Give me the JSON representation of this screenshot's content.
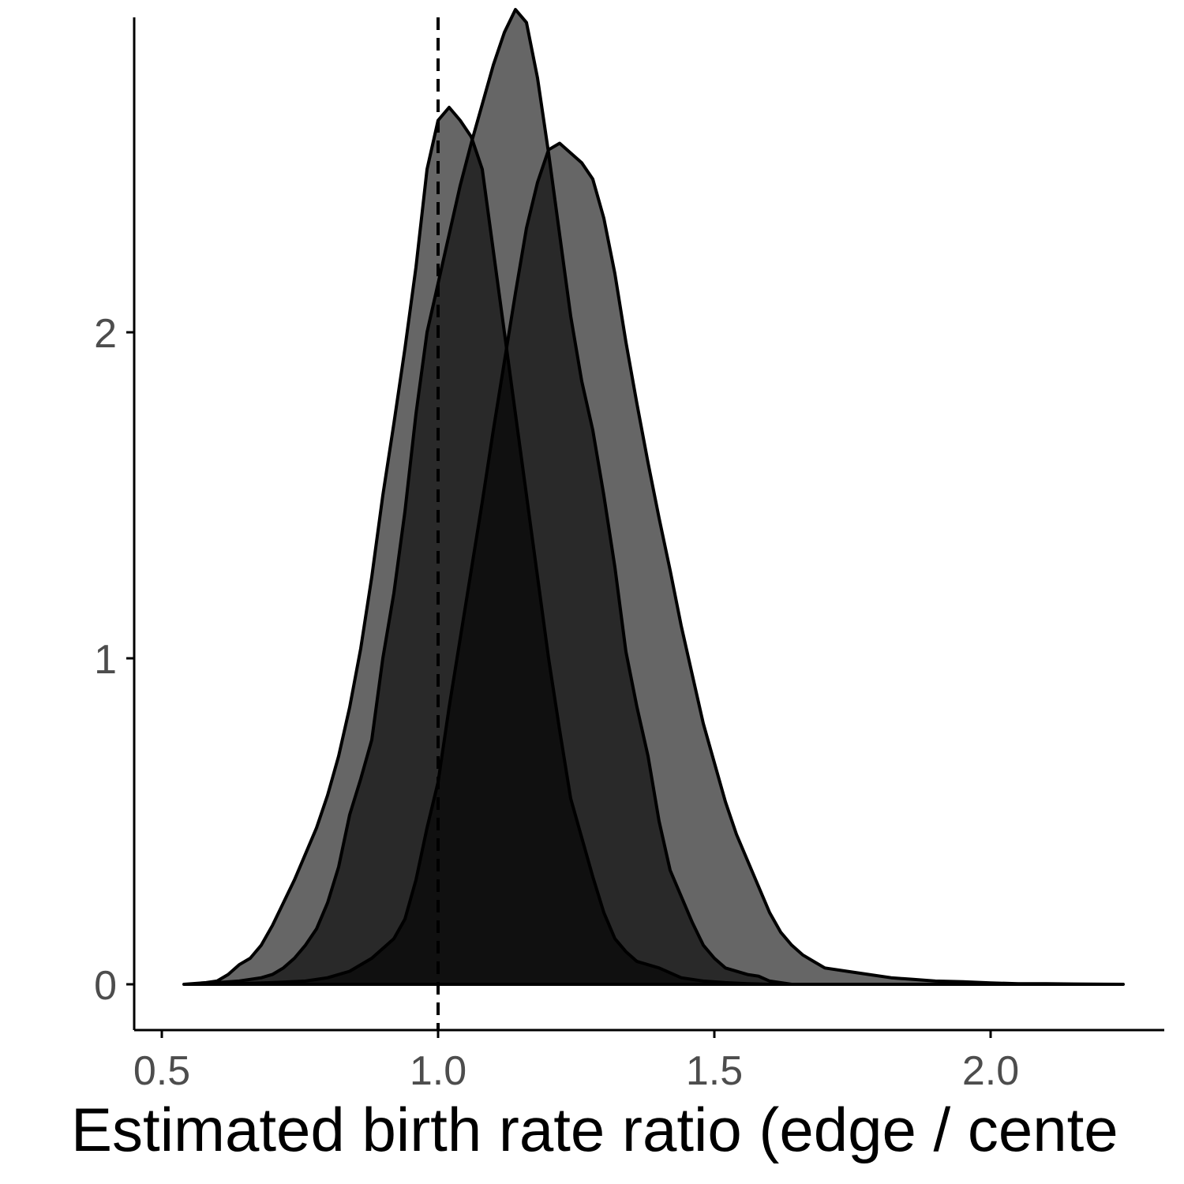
{
  "chart_data": {
    "type": "area",
    "xlabel": "Estimated birth rate ratio (edge / cente",
    "ylabel": "",
    "title": "",
    "xlim": [
      0.45,
      2.3
    ],
    "ylim": [
      -0.14,
      2.96
    ],
    "xticks": [
      {
        "value": 0.5,
        "label": "0.5"
      },
      {
        "value": 1.0,
        "label": "1.0"
      },
      {
        "value": 1.5,
        "label": "1.5"
      },
      {
        "value": 2.0,
        "label": "2.0"
      }
    ],
    "yticks": [
      {
        "value": 0,
        "label": "0"
      },
      {
        "value": 1,
        "label": "1"
      },
      {
        "value": 2,
        "label": "2"
      }
    ],
    "reference_line": {
      "x": 1.0,
      "style": "dashed",
      "color": "#000000"
    },
    "grid": false,
    "legend": "none",
    "fill_color": "#000000",
    "fill_opacity": 0.6,
    "outline_color": "#000000",
    "series": [
      {
        "points": [
          [
            0.54,
            0.0
          ],
          [
            0.58,
            0.005
          ],
          [
            0.6,
            0.01
          ],
          [
            0.62,
            0.03
          ],
          [
            0.64,
            0.06
          ],
          [
            0.66,
            0.08
          ],
          [
            0.68,
            0.12
          ],
          [
            0.7,
            0.18
          ],
          [
            0.72,
            0.25
          ],
          [
            0.74,
            0.32
          ],
          [
            0.76,
            0.4
          ],
          [
            0.78,
            0.48
          ],
          [
            0.8,
            0.58
          ],
          [
            0.82,
            0.7
          ],
          [
            0.84,
            0.85
          ],
          [
            0.86,
            1.03
          ],
          [
            0.88,
            1.25
          ],
          [
            0.9,
            1.5
          ],
          [
            0.92,
            1.72
          ],
          [
            0.94,
            1.95
          ],
          [
            0.96,
            2.2
          ],
          [
            0.98,
            2.5
          ],
          [
            1.0,
            2.65
          ],
          [
            1.02,
            2.69
          ],
          [
            1.04,
            2.65
          ],
          [
            1.06,
            2.6
          ],
          [
            1.08,
            2.5
          ],
          [
            1.1,
            2.25
          ],
          [
            1.12,
            2.0
          ],
          [
            1.14,
            1.75
          ],
          [
            1.16,
            1.5
          ],
          [
            1.18,
            1.25
          ],
          [
            1.2,
            1.0
          ],
          [
            1.22,
            0.78
          ],
          [
            1.24,
            0.57
          ],
          [
            1.26,
            0.45
          ],
          [
            1.28,
            0.33
          ],
          [
            1.3,
            0.22
          ],
          [
            1.32,
            0.14
          ],
          [
            1.34,
            0.1
          ],
          [
            1.36,
            0.07
          ],
          [
            1.4,
            0.05
          ],
          [
            1.44,
            0.02
          ],
          [
            1.48,
            0.01
          ],
          [
            1.52,
            0.005
          ],
          [
            1.56,
            0.002
          ],
          [
            1.6,
            0.0
          ]
        ]
      },
      {
        "points": [
          [
            0.56,
            0.0
          ],
          [
            0.6,
            0.005
          ],
          [
            0.64,
            0.01
          ],
          [
            0.68,
            0.02
          ],
          [
            0.7,
            0.03
          ],
          [
            0.72,
            0.05
          ],
          [
            0.74,
            0.08
          ],
          [
            0.76,
            0.12
          ],
          [
            0.78,
            0.17
          ],
          [
            0.8,
            0.25
          ],
          [
            0.82,
            0.36
          ],
          [
            0.84,
            0.52
          ],
          [
            0.86,
            0.63
          ],
          [
            0.88,
            0.75
          ],
          [
            0.9,
            1.0
          ],
          [
            0.92,
            1.2
          ],
          [
            0.94,
            1.45
          ],
          [
            0.96,
            1.75
          ],
          [
            0.98,
            2.0
          ],
          [
            1.0,
            2.15
          ],
          [
            1.02,
            2.3
          ],
          [
            1.04,
            2.45
          ],
          [
            1.06,
            2.58
          ],
          [
            1.08,
            2.7
          ],
          [
            1.1,
            2.82
          ],
          [
            1.12,
            2.92
          ],
          [
            1.14,
            2.99
          ],
          [
            1.16,
            2.95
          ],
          [
            1.18,
            2.78
          ],
          [
            1.2,
            2.55
          ],
          [
            1.22,
            2.3
          ],
          [
            1.24,
            2.05
          ],
          [
            1.26,
            1.85
          ],
          [
            1.28,
            1.7
          ],
          [
            1.3,
            1.5
          ],
          [
            1.32,
            1.28
          ],
          [
            1.34,
            1.02
          ],
          [
            1.36,
            0.85
          ],
          [
            1.38,
            0.7
          ],
          [
            1.4,
            0.5
          ],
          [
            1.42,
            0.35
          ],
          [
            1.44,
            0.27
          ],
          [
            1.46,
            0.19
          ],
          [
            1.48,
            0.12
          ],
          [
            1.5,
            0.08
          ],
          [
            1.52,
            0.05
          ],
          [
            1.56,
            0.03
          ],
          [
            1.58,
            0.025
          ],
          [
            1.6,
            0.01
          ],
          [
            1.64,
            0.0
          ]
        ]
      },
      {
        "points": [
          [
            0.6,
            0.0
          ],
          [
            0.7,
            0.005
          ],
          [
            0.76,
            0.01
          ],
          [
            0.8,
            0.02
          ],
          [
            0.84,
            0.04
          ],
          [
            0.88,
            0.08
          ],
          [
            0.9,
            0.11
          ],
          [
            0.92,
            0.14
          ],
          [
            0.94,
            0.2
          ],
          [
            0.96,
            0.32
          ],
          [
            0.98,
            0.48
          ],
          [
            1.0,
            0.62
          ],
          [
            1.02,
            0.85
          ],
          [
            1.04,
            1.06
          ],
          [
            1.06,
            1.27
          ],
          [
            1.08,
            1.48
          ],
          [
            1.1,
            1.7
          ],
          [
            1.12,
            1.91
          ],
          [
            1.14,
            2.12
          ],
          [
            1.16,
            2.32
          ],
          [
            1.18,
            2.46
          ],
          [
            1.2,
            2.56
          ],
          [
            1.22,
            2.58
          ],
          [
            1.24,
            2.55
          ],
          [
            1.26,
            2.52
          ],
          [
            1.28,
            2.47
          ],
          [
            1.3,
            2.35
          ],
          [
            1.32,
            2.18
          ],
          [
            1.34,
            1.97
          ],
          [
            1.36,
            1.78
          ],
          [
            1.38,
            1.6
          ],
          [
            1.4,
            1.43
          ],
          [
            1.42,
            1.27
          ],
          [
            1.44,
            1.1
          ],
          [
            1.46,
            0.95
          ],
          [
            1.48,
            0.8
          ],
          [
            1.5,
            0.68
          ],
          [
            1.52,
            0.56
          ],
          [
            1.54,
            0.46
          ],
          [
            1.56,
            0.38
          ],
          [
            1.58,
            0.3
          ],
          [
            1.6,
            0.22
          ],
          [
            1.62,
            0.16
          ],
          [
            1.64,
            0.12
          ],
          [
            1.66,
            0.09
          ],
          [
            1.68,
            0.07
          ],
          [
            1.7,
            0.05
          ],
          [
            1.74,
            0.04
          ],
          [
            1.78,
            0.03
          ],
          [
            1.82,
            0.02
          ],
          [
            1.86,
            0.015
          ],
          [
            1.9,
            0.01
          ],
          [
            1.95,
            0.008
          ],
          [
            2.0,
            0.004
          ],
          [
            2.05,
            0.002
          ],
          [
            2.1,
            0.002
          ],
          [
            2.15,
            0.001
          ],
          [
            2.24,
            0.0
          ]
        ]
      }
    ]
  }
}
